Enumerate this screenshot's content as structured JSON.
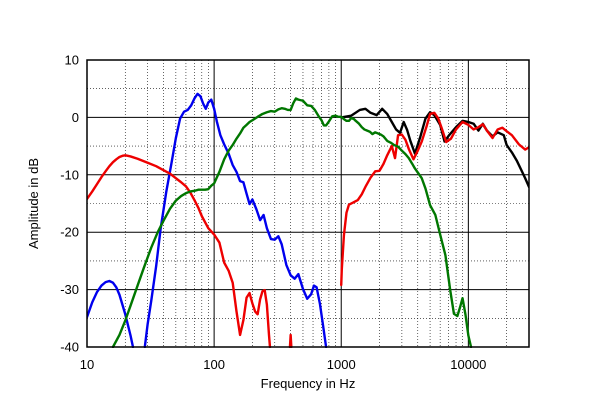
{
  "chart_data": {
    "type": "line",
    "title": "",
    "xlabel": "Frequency  in Hz",
    "ylabel": "Amplitude in dB",
    "x_scale": "log",
    "xlim": [
      10,
      30000
    ],
    "ylim": [
      -40,
      10
    ],
    "grid": true,
    "x_tick_labels": [
      "10",
      "100",
      "1000",
      "10000"
    ],
    "y_tick_labels": [
      "10",
      "0",
      "-10",
      "-20",
      "-30",
      "-40"
    ],
    "series": [
      {
        "color": "#000000",
        "points": [
          [
            1000,
            0
          ],
          [
            1200,
            0.3
          ],
          [
            1400,
            1.3
          ],
          [
            1550,
            1.5
          ],
          [
            1700,
            0.8
          ],
          [
            1900,
            0.4
          ],
          [
            2100,
            1.5
          ],
          [
            2300,
            0.6
          ],
          [
            2500,
            -0.8
          ],
          [
            2700,
            -2.1
          ],
          [
            2900,
            -2.7
          ],
          [
            3100,
            -0.8
          ],
          [
            3300,
            -2.2
          ],
          [
            3500,
            -4.1
          ],
          [
            3800,
            -6.3
          ],
          [
            4200,
            -3.3
          ],
          [
            4600,
            -0.2
          ],
          [
            5000,
            0.9
          ],
          [
            5400,
            0.4
          ],
          [
            6000,
            -1.3
          ],
          [
            6500,
            -4.2
          ],
          [
            7000,
            -3.2
          ],
          [
            8000,
            -1.7
          ],
          [
            9000,
            -0.6
          ],
          [
            10000,
            -0.8
          ],
          [
            11000,
            -1.1
          ],
          [
            12000,
            -2.3
          ],
          [
            13000,
            -1.1
          ],
          [
            14000,
            -2.3
          ],
          [
            15500,
            -3.3
          ],
          [
            17000,
            -2.6
          ],
          [
            19000,
            -3.1
          ],
          [
            20000,
            -4.8
          ],
          [
            22000,
            -6.1
          ],
          [
            24000,
            -7.5
          ],
          [
            26000,
            -9.1
          ],
          [
            28000,
            -10.6
          ],
          [
            30000,
            -12.1
          ]
        ]
      },
      {
        "color": "#0000ee",
        "points": [
          [
            10,
            -34.8
          ],
          [
            11,
            -32.2
          ],
          [
            12,
            -30.4
          ],
          [
            13,
            -29.3
          ],
          [
            14,
            -28.7
          ],
          [
            15,
            -28.5
          ],
          [
            16,
            -28.8
          ],
          [
            17,
            -29.6
          ],
          [
            18,
            -30.9
          ],
          [
            20,
            -34.3
          ],
          [
            22,
            -38
          ],
          [
            23,
            -40
          ],
          [
            null,
            null
          ],
          [
            28.5,
            -40
          ],
          [
            30,
            -36
          ],
          [
            32,
            -32
          ],
          [
            35,
            -25.9
          ],
          [
            38,
            -19.3
          ],
          [
            42,
            -13
          ],
          [
            46,
            -8.2
          ],
          [
            50,
            -3.6
          ],
          [
            54,
            -0.2
          ],
          [
            58,
            1
          ],
          [
            62,
            1.3
          ],
          [
            66,
            2.1
          ],
          [
            70,
            3.3
          ],
          [
            74,
            4.1
          ],
          [
            78,
            3.7
          ],
          [
            82,
            2.4
          ],
          [
            86,
            1.5
          ],
          [
            90,
            2.6
          ],
          [
            95,
            3.1
          ],
          [
            100,
            1.5
          ],
          [
            105,
            -0.7
          ],
          [
            112,
            -3.1
          ],
          [
            120,
            -4.7
          ],
          [
            130,
            -6.3
          ],
          [
            140,
            -8.3
          ],
          [
            150,
            -9.5
          ],
          [
            160,
            -11.1
          ],
          [
            170,
            -11.3
          ],
          [
            180,
            -13.3
          ],
          [
            190,
            -15.1
          ],
          [
            200,
            -14.3
          ],
          [
            215,
            -16
          ],
          [
            230,
            -17.9
          ],
          [
            245,
            -17
          ],
          [
            260,
            -19.3
          ],
          [
            280,
            -21.2
          ],
          [
            300,
            -21.3
          ],
          [
            320,
            -20.7
          ],
          [
            340,
            -22.1
          ],
          [
            370,
            -25.7
          ],
          [
            400,
            -27.5
          ],
          [
            430,
            -28.1
          ],
          [
            460,
            -27.3
          ],
          [
            500,
            -29.9
          ],
          [
            540,
            -31.6
          ],
          [
            580,
            -30.8
          ],
          [
            610,
            -29.3
          ],
          [
            640,
            -29.6
          ],
          [
            680,
            -32.5
          ],
          [
            720,
            -36.3
          ],
          [
            760,
            -40
          ]
        ]
      },
      {
        "color": "#ee0000",
        "points": [
          [
            10,
            -14.2
          ],
          [
            11,
            -12.9
          ],
          [
            12,
            -11.6
          ],
          [
            13,
            -10.4
          ],
          [
            14,
            -9.4
          ],
          [
            15,
            -8.5
          ],
          [
            16,
            -7.8
          ],
          [
            17,
            -7.3
          ],
          [
            18,
            -6.9
          ],
          [
            19,
            -6.7
          ],
          [
            20,
            -6.6
          ],
          [
            22,
            -6.8
          ],
          [
            25,
            -7.2
          ],
          [
            30,
            -7.9
          ],
          [
            35,
            -8.5
          ],
          [
            40,
            -9.2
          ],
          [
            45,
            -9.8
          ],
          [
            50,
            -10.6
          ],
          [
            55,
            -11.3
          ],
          [
            60,
            -12
          ],
          [
            65,
            -13.1
          ],
          [
            70,
            -14.4
          ],
          [
            75,
            -15.7
          ],
          [
            80,
            -17.2
          ],
          [
            90,
            -19.3
          ],
          [
            100,
            -20.4
          ],
          [
            110,
            -21.8
          ],
          [
            120,
            -25.3
          ],
          [
            130,
            -26.7
          ],
          [
            140,
            -28.8
          ],
          [
            150,
            -33.8
          ],
          [
            160,
            -37.9
          ],
          [
            170,
            -35.3
          ],
          [
            180,
            -31.4
          ],
          [
            190,
            -30.6
          ],
          [
            200,
            -32.4
          ],
          [
            210,
            -33.8
          ],
          [
            220,
            -34.3
          ],
          [
            230,
            -31.7
          ],
          [
            240,
            -30.3
          ],
          [
            250,
            -30.1
          ],
          [
            260,
            -32.6
          ],
          [
            270,
            -37.8
          ],
          [
            275,
            -40
          ],
          [
            null,
            null
          ],
          [
            395,
            -40
          ],
          [
            400,
            -37.9
          ],
          [
            405,
            -40
          ],
          [
            null,
            null
          ],
          [
            1000,
            -29.2
          ],
          [
            1010,
            -26.5
          ],
          [
            1050,
            -20.5
          ],
          [
            1100,
            -16.6
          ],
          [
            1150,
            -15.2
          ],
          [
            1250,
            -14.8
          ],
          [
            1350,
            -14.4
          ],
          [
            1450,
            -13.4
          ],
          [
            1550,
            -12.1
          ],
          [
            1700,
            -10.5
          ],
          [
            1850,
            -9.4
          ],
          [
            2000,
            -9.3
          ],
          [
            2150,
            -8.1
          ],
          [
            2300,
            -6.6
          ],
          [
            2500,
            -5
          ],
          [
            2650,
            -7.1
          ],
          [
            2800,
            -3.1
          ],
          [
            3000,
            -3
          ],
          [
            3200,
            -3.9
          ],
          [
            3400,
            -5.5
          ],
          [
            3700,
            -7.3
          ],
          [
            4000,
            -5.8
          ],
          [
            4300,
            -4.2
          ],
          [
            4700,
            -1.5
          ],
          [
            5000,
            0.6
          ],
          [
            5400,
            0.8
          ],
          [
            5800,
            -0.2
          ],
          [
            6200,
            -2
          ],
          [
            6700,
            -4.3
          ],
          [
            7300,
            -3.7
          ],
          [
            8000,
            -2.1
          ],
          [
            9000,
            -0.8
          ],
          [
            10000,
            -1.3
          ],
          [
            11000,
            -2.1
          ],
          [
            12000,
            -1.7
          ],
          [
            13000,
            -1.2
          ],
          [
            14000,
            -2.3
          ],
          [
            15500,
            -3.6
          ],
          [
            17000,
            -2.1
          ],
          [
            18500,
            -1.8
          ],
          [
            20000,
            -2.4
          ],
          [
            22000,
            -3.1
          ],
          [
            25000,
            -4.7
          ],
          [
            28000,
            -5.6
          ],
          [
            30000,
            -5.2
          ]
        ]
      },
      {
        "color": "#007700",
        "points": [
          [
            16,
            -40
          ],
          [
            18,
            -37.9
          ],
          [
            20,
            -35.4
          ],
          [
            22,
            -32.8
          ],
          [
            25,
            -29.3
          ],
          [
            28,
            -26.2
          ],
          [
            32,
            -22.7
          ],
          [
            36,
            -20
          ],
          [
            40,
            -18
          ],
          [
            45,
            -15.9
          ],
          [
            50,
            -14.5
          ],
          [
            55,
            -13.7
          ],
          [
            60,
            -13.2
          ],
          [
            65,
            -12.9
          ],
          [
            70,
            -12.8
          ],
          [
            75,
            -12.6
          ],
          [
            80,
            -12.6
          ],
          [
            85,
            -12.6
          ],
          [
            90,
            -12.5
          ],
          [
            95,
            -11.9
          ],
          [
            100,
            -11.5
          ],
          [
            110,
            -9.5
          ],
          [
            120,
            -7.3
          ],
          [
            130,
            -5.8
          ],
          [
            140,
            -4.8
          ],
          [
            150,
            -3.7
          ],
          [
            160,
            -2.8
          ],
          [
            170,
            -1.8
          ],
          [
            180,
            -1.3
          ],
          [
            190,
            -0.8
          ],
          [
            200,
            -0.5
          ],
          [
            220,
            0.1
          ],
          [
            240,
            0.6
          ],
          [
            260,
            0.9
          ],
          [
            280,
            1.1
          ],
          [
            300,
            1
          ],
          [
            320,
            1.4
          ],
          [
            340,
            1.6
          ],
          [
            360,
            1.5
          ],
          [
            380,
            1.3
          ],
          [
            400,
            1.3
          ],
          [
            420,
            2.5
          ],
          [
            440,
            3.3
          ],
          [
            460,
            3.1
          ],
          [
            500,
            2.9
          ],
          [
            540,
            2.1
          ],
          [
            580,
            2
          ],
          [
            620,
            1.3
          ],
          [
            660,
            0.3
          ],
          [
            700,
            -0.5
          ],
          [
            730,
            -1.4
          ],
          [
            760,
            -1.4
          ],
          [
            800,
            -0.7
          ],
          [
            850,
            0.2
          ],
          [
            900,
            0.3
          ],
          [
            950,
            0.1
          ],
          [
            1000,
            0.1
          ],
          [
            1050,
            -0.3
          ],
          [
            1100,
            -0.6
          ],
          [
            1150,
            -0.6
          ],
          [
            1200,
            -0.1
          ],
          [
            1260,
            -0.3
          ],
          [
            1300,
            -0.6
          ],
          [
            1380,
            -1.1
          ],
          [
            1450,
            -1.7
          ],
          [
            1520,
            -2.1
          ],
          [
            1600,
            -2.3
          ],
          [
            1680,
            -2.5
          ],
          [
            1760,
            -2.9
          ],
          [
            1850,
            -2.6
          ],
          [
            1950,
            -2.8
          ],
          [
            2050,
            -3
          ],
          [
            2150,
            -3.3
          ],
          [
            2300,
            -4.1
          ],
          [
            2450,
            -4.4
          ],
          [
            2600,
            -4.8
          ],
          [
            2800,
            -5.1
          ],
          [
            3000,
            -5.8
          ],
          [
            3200,
            -6.4
          ],
          [
            3400,
            -7.1
          ],
          [
            3600,
            -8
          ],
          [
            3800,
            -8.9
          ],
          [
            4000,
            -9.6
          ],
          [
            4300,
            -10.6
          ],
          [
            4600,
            -12.4
          ],
          [
            5000,
            -15.3
          ],
          [
            5500,
            -17
          ],
          [
            6000,
            -20.4
          ],
          [
            6600,
            -24
          ],
          [
            7200,
            -30.1
          ],
          [
            7700,
            -34.2
          ],
          [
            8200,
            -34.6
          ],
          [
            8600,
            -33.1
          ],
          [
            9000,
            -31.5
          ],
          [
            9500,
            -34.4
          ],
          [
            10000,
            -38
          ],
          [
            10500,
            -40
          ]
        ]
      }
    ]
  }
}
